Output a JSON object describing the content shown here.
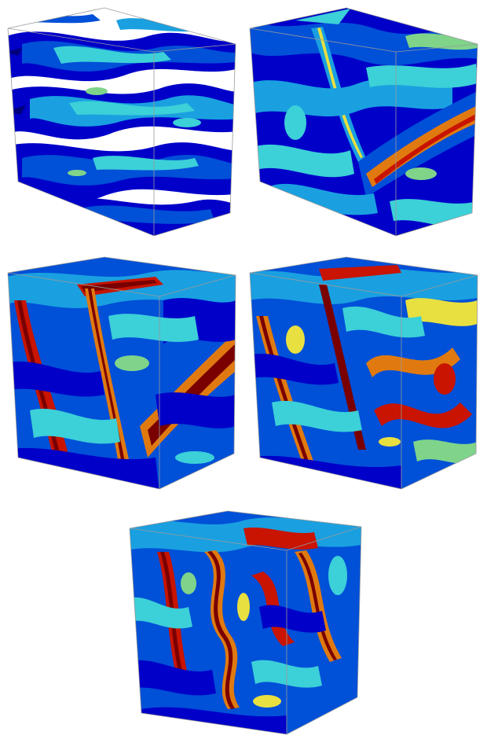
{
  "figure": {
    "panels": [
      {
        "id": "snapshot-1",
        "stage": 1
      },
      {
        "id": "snapshot-2",
        "stage": 2
      },
      {
        "id": "snapshot-3",
        "stage": 3
      },
      {
        "id": "snapshot-4",
        "stage": 4
      },
      {
        "id": "snapshot-5",
        "stage": 5
      }
    ],
    "colormap": [
      "#00007a",
      "#0000c8",
      "#0050d8",
      "#1aa0e0",
      "#3cd0d8",
      "#7fd48a",
      "#e8e040",
      "#e07a10",
      "#c81400",
      "#7a0000"
    ],
    "edge_color": "#9a9a9a"
  }
}
